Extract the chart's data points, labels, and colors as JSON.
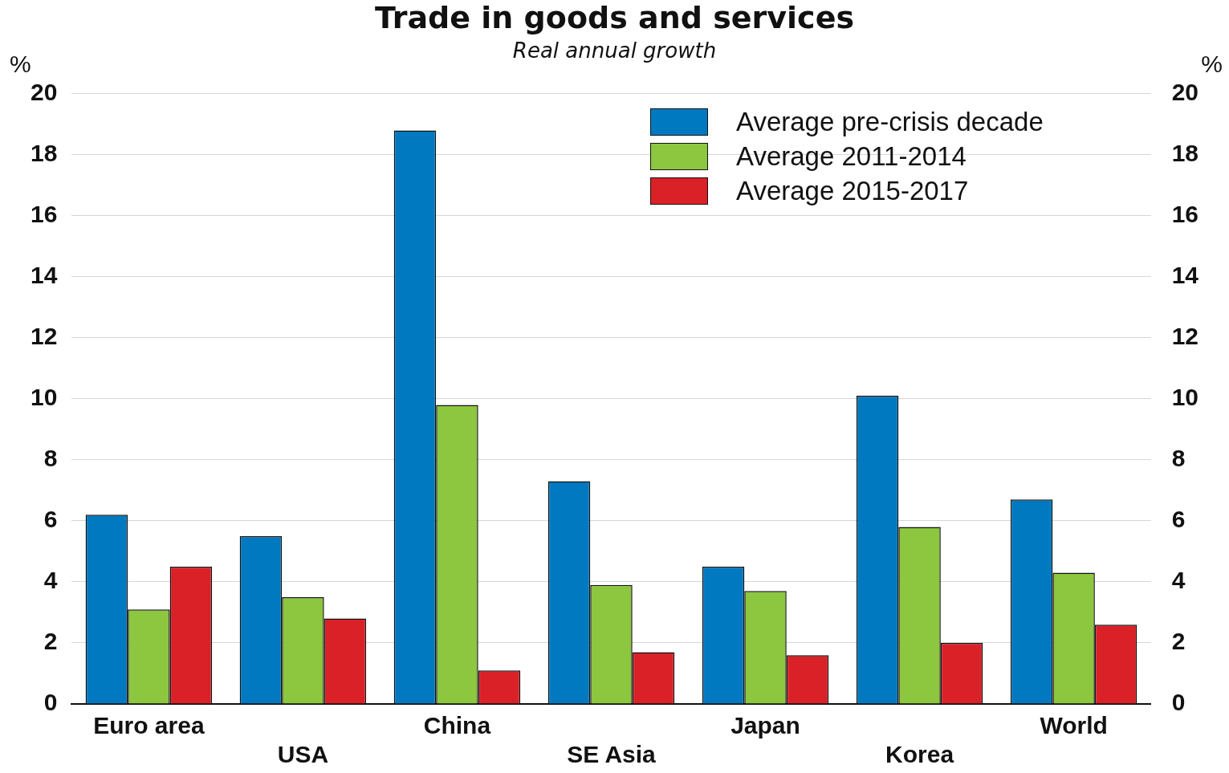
{
  "chart_data": {
    "type": "bar",
    "title": "Trade in goods and services",
    "subtitle": "Real annual growth",
    "ylabel": "%",
    "y2label": "%",
    "categories": [
      "Euro area",
      "USA",
      "China",
      "SE Asia",
      "Japan",
      "Korea",
      "World"
    ],
    "series": [
      {
        "name": "Average pre-crisis decade",
        "color": "#0079c1",
        "values": [
          6.2,
          5.5,
          18.8,
          7.3,
          4.5,
          10.1,
          6.7
        ]
      },
      {
        "name": "Average 2011-2014",
        "color": "#8dc63f",
        "values": [
          3.1,
          3.5,
          9.8,
          3.9,
          3.7,
          5.8,
          4.3
        ]
      },
      {
        "name": "Average 2015-2017",
        "color": "#da2128",
        "values": [
          4.5,
          2.8,
          1.1,
          1.7,
          1.6,
          2.0,
          2.6
        ]
      }
    ],
    "ylim": [
      0,
      20
    ],
    "yticks": [
      0,
      2,
      4,
      6,
      8,
      10,
      12,
      14,
      16,
      18,
      20
    ],
    "y2lim": [
      0,
      20
    ],
    "y2ticks": [
      0,
      2,
      4,
      6,
      8,
      10,
      12,
      14,
      16,
      18,
      20
    ],
    "grid": "y",
    "legend": "top right"
  }
}
